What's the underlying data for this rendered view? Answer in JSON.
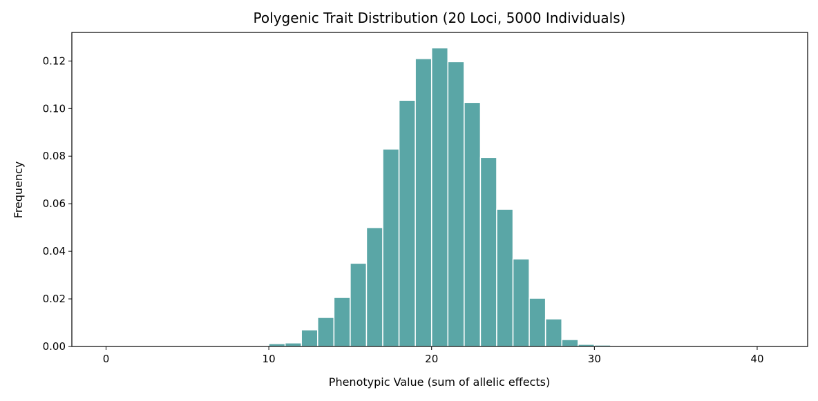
{
  "chart_data": {
    "type": "bar",
    "title": "Polygenic Trait Distribution (20 Loci, 5000 Individuals)",
    "xlabel": "Phenotypic Value (sum of allelic effects)",
    "ylabel": "Frequency",
    "xlim": [
      -2.1,
      43.1
    ],
    "ylim": [
      0,
      0.132
    ],
    "xticks": [
      0,
      10,
      20,
      30,
      40
    ],
    "yticks": [
      0.0,
      0.02,
      0.04,
      0.06,
      0.08,
      0.1,
      0.12
    ],
    "ytick_labels": [
      "0.00",
      "0.02",
      "0.04",
      "0.06",
      "0.08",
      "0.10",
      "0.12"
    ],
    "bin_width": 1,
    "bin_starts": [
      10,
      11,
      12,
      13,
      14,
      15,
      16,
      17,
      18,
      19,
      20,
      21,
      22,
      23,
      24,
      25,
      26,
      27,
      28,
      29,
      30
    ],
    "values": [
      0.0012,
      0.0015,
      0.007,
      0.0122,
      0.0206,
      0.035,
      0.05,
      0.083,
      0.1035,
      0.121,
      0.1255,
      0.1197,
      0.1026,
      0.0794,
      0.0577,
      0.0368,
      0.0203,
      0.0116,
      0.0029,
      0.0009,
      0.0006
    ],
    "bar_color": "#5aa6a6",
    "edge_color": "#ffffff",
    "grid": false,
    "legend": "none"
  }
}
